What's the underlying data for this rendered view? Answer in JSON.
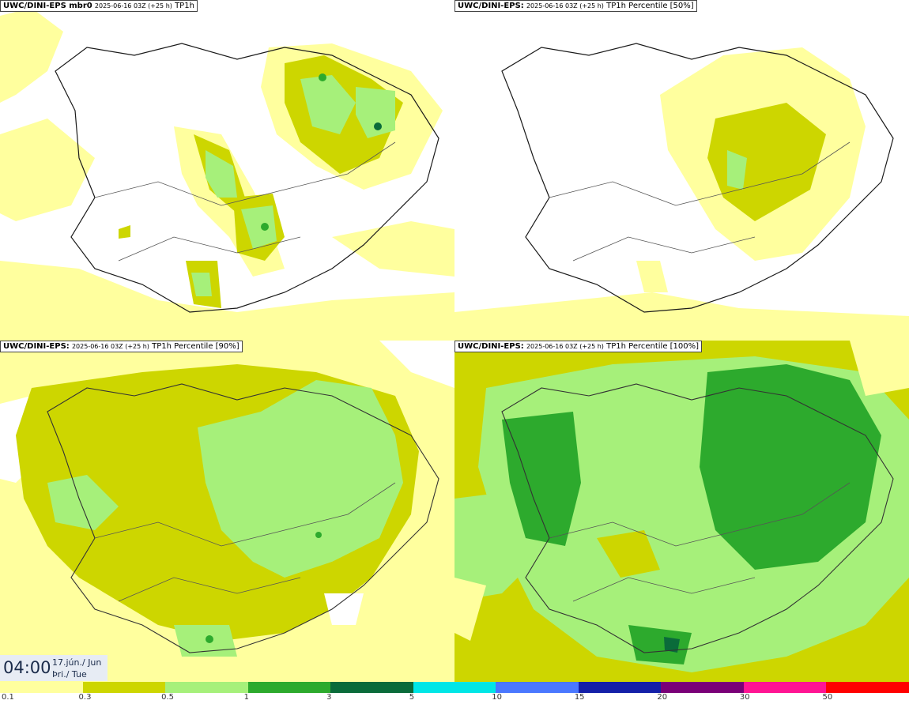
{
  "panels": [
    {
      "model": "UWC/DINI-EPS",
      "suffix": " mbr0",
      "meta": "2025-06-16 03Z (+25 h)",
      "field": "TP1h"
    },
    {
      "model": "UWC/DINI-EPS",
      "suffix": ":",
      "meta": "2025-06-16 03Z (+25 h)",
      "field": "TP1h Percentile [50%]"
    },
    {
      "model": "UWC/DINI-EPS",
      "suffix": ":",
      "meta": "2025-06-16 03Z (+25 h)",
      "field": "TP1h Percentile [90%]"
    },
    {
      "model": "UWC/DINI-EPS",
      "suffix": ":",
      "meta": "2025-06-16 03Z (+25 h)",
      "field": "TP1h Percentile [100%]"
    }
  ],
  "valid_time": {
    "time": "04:00",
    "date_line1": "17.jún./ Jun",
    "date_line2": "Þri./ Tue"
  },
  "colorbar": {
    "levels": [
      "0.1",
      "0.3",
      "0.5",
      "1",
      "3",
      "5",
      "10",
      "15",
      "20",
      "30",
      "50"
    ],
    "colors": [
      "#ffff9e",
      "#cdd600",
      "#a6f07a",
      "#2daa2d",
      "#0a6b3a",
      "#00e6e6",
      "#4a78ff",
      "#1420a8",
      "#7a0078",
      "#ff1493",
      "#ff0000"
    ]
  }
}
